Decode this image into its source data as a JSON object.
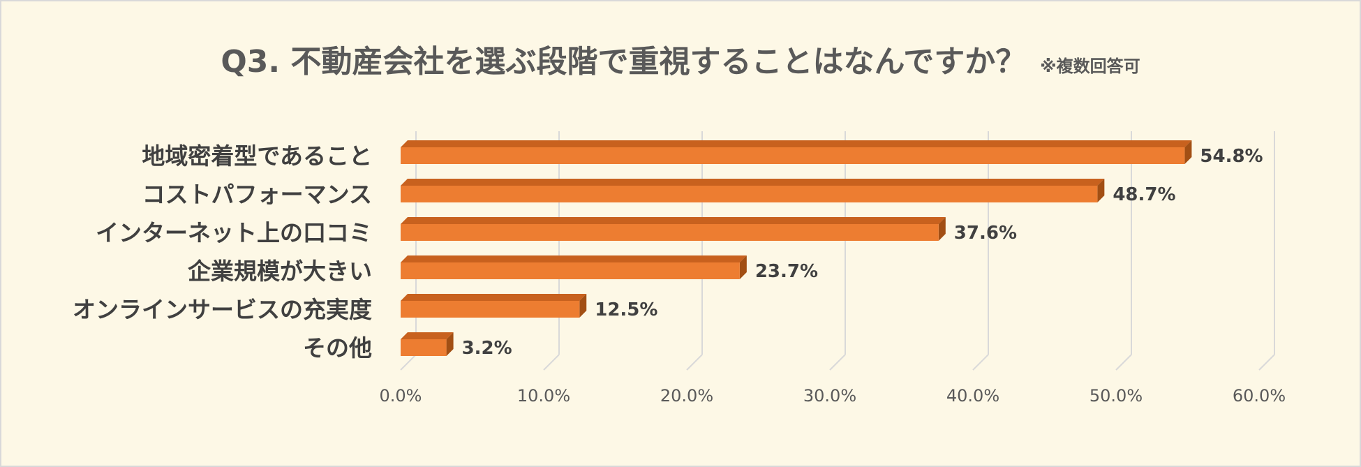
{
  "title": "Q3. 不動産会社を選ぶ段階で重視することはなんですか？",
  "note": "※複数回答可",
  "chart_data": {
    "type": "bar",
    "orientation": "horizontal",
    "style": "3d",
    "categories": [
      "地域密着型であること",
      "コストパフォーマンス",
      "インターネット上の口コミ",
      "企業規模が大きい",
      "オンラインサービスの充実度",
      "その他"
    ],
    "values": [
      54.8,
      48.7,
      37.6,
      23.7,
      12.5,
      3.2
    ],
    "value_labels": [
      "54.8%",
      "48.7%",
      "37.6%",
      "23.7%",
      "12.5%",
      "3.2%"
    ],
    "xlim": [
      0,
      60
    ],
    "xticks": [
      0,
      10,
      20,
      30,
      40,
      50,
      60
    ],
    "xtick_labels": [
      "0.0%",
      "10.0%",
      "20.0%",
      "30.0%",
      "40.0%",
      "50.0%",
      "60.0%"
    ],
    "grid": true,
    "colors": {
      "bar": "#ed7d31",
      "bar_top": "#c8611e",
      "bar_side": "#a24f14",
      "grid": "#d9d9d9"
    }
  }
}
